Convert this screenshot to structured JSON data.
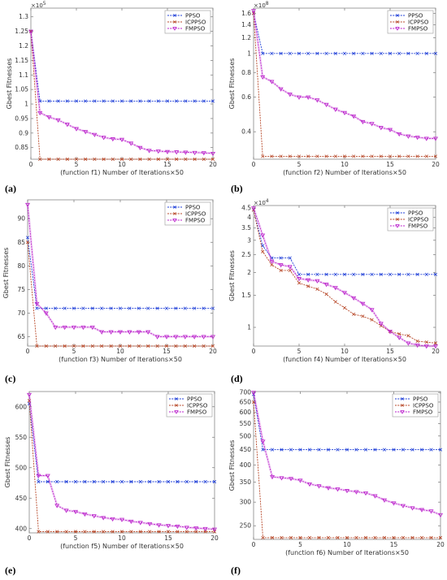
{
  "series_colors": {
    "PPSO": "#1f3fd8",
    "ICPPSO": "#b84a2b",
    "FMPSO": "#bb22cc"
  },
  "chart_data": [
    {
      "type": "line",
      "panel_label": "(a)",
      "xlabel": "(function f1)   Number of Iterations×50",
      "ylabel": "Gbest Fitnesses",
      "exponent": "×10",
      "exponent_power": "5",
      "xlim": [
        0,
        20
      ],
      "ylim": [
        0.81,
        1.33
      ],
      "xticks": [
        0,
        5,
        10,
        15,
        20
      ],
      "yticks": [
        0.85,
        0.9,
        0.95,
        1,
        1.05,
        1.1,
        1.15,
        1.2,
        1.25,
        1.3
      ],
      "ytick_labels": [
        "0.85",
        "0.9",
        "0.95",
        "1",
        "1.05",
        "1.1",
        "1.15",
        "1.2",
        "1.25",
        "1.3"
      ],
      "legend": [
        "PPSO",
        "ICPPSO",
        "FMPSO"
      ],
      "x": [
        0,
        1,
        2,
        3,
        4,
        5,
        6,
        7,
        8,
        9,
        10,
        11,
        12,
        13,
        14,
        15,
        16,
        17,
        18,
        19,
        20
      ],
      "series": [
        {
          "name": "PPSO",
          "values": [
            1.25,
            1.01,
            1.01,
            1.01,
            1.01,
            1.01,
            1.01,
            1.01,
            1.01,
            1.01,
            1.01,
            1.01,
            1.01,
            1.01,
            1.01,
            1.01,
            1.01,
            1.01,
            1.01,
            1.01,
            1.01
          ]
        },
        {
          "name": "ICPPSO",
          "values": [
            1.25,
            0.81,
            0.81,
            0.81,
            0.81,
            0.81,
            0.81,
            0.81,
            0.81,
            0.81,
            0.81,
            0.81,
            0.81,
            0.81,
            0.81,
            0.81,
            0.81,
            0.81,
            0.81,
            0.81,
            0.81
          ]
        },
        {
          "name": "FMPSO",
          "values": [
            1.25,
            0.97,
            0.955,
            0.945,
            0.93,
            0.915,
            0.905,
            0.895,
            0.885,
            0.88,
            0.878,
            0.865,
            0.85,
            0.84,
            0.838,
            0.836,
            0.835,
            0.834,
            0.833,
            0.832,
            0.83
          ]
        }
      ]
    },
    {
      "type": "line",
      "panel_label": "(b)",
      "xlabel": "(function f2)   Number of Iterations×50",
      "ylabel": "Gbest Fitnesses",
      "exponent": "×10",
      "exponent_power": "8",
      "xlim": [
        0,
        20
      ],
      "ylim": [
        0.29,
        1.7
      ],
      "yscale": "log",
      "xticks": [
        0,
        5,
        10,
        15,
        20
      ],
      "yticks": [
        0.4,
        0.6,
        0.8,
        1,
        1.2,
        1.4,
        1.6
      ],
      "ytick_labels": [
        "0.4",
        "0.6",
        "0.8",
        "1",
        "1.2",
        "1.4",
        "1.6"
      ],
      "legend": [
        "PPSO",
        "ICPPSO",
        "FMPSO"
      ],
      "x": [
        0,
        1,
        2,
        3,
        4,
        5,
        6,
        7,
        8,
        9,
        10,
        11,
        12,
        13,
        14,
        15,
        16,
        17,
        18,
        19,
        20
      ],
      "series": [
        {
          "name": "PPSO",
          "values": [
            1.6,
            1.0,
            1.0,
            1.0,
            1.0,
            1.0,
            1.0,
            1.0,
            1.0,
            1.0,
            1.0,
            1.0,
            1.0,
            1.0,
            1.0,
            1.0,
            1.0,
            1.0,
            1.0,
            1.0,
            1.0
          ]
        },
        {
          "name": "ICPPSO",
          "values": [
            1.6,
            0.3,
            0.3,
            0.3,
            0.3,
            0.3,
            0.3,
            0.3,
            0.3,
            0.3,
            0.3,
            0.3,
            0.3,
            0.3,
            0.3,
            0.3,
            0.3,
            0.3,
            0.3,
            0.3,
            0.3
          ]
        },
        {
          "name": "FMPSO",
          "values": [
            1.65,
            0.76,
            0.72,
            0.66,
            0.62,
            0.6,
            0.6,
            0.58,
            0.55,
            0.52,
            0.5,
            0.48,
            0.45,
            0.44,
            0.42,
            0.41,
            0.39,
            0.38,
            0.375,
            0.37,
            0.37
          ]
        }
      ]
    },
    {
      "type": "line",
      "panel_label": "(c)",
      "xlabel": "(function f3)   Number of Iterations×50",
      "ylabel": "Gbest Fitnesses",
      "xlim": [
        0,
        20
      ],
      "ylim": [
        63,
        94
      ],
      "xticks": [
        0,
        5,
        10,
        15,
        20
      ],
      "yticks": [
        65,
        70,
        75,
        80,
        85,
        90
      ],
      "ytick_labels": [
        "65",
        "70",
        "75",
        "80",
        "85",
        "90"
      ],
      "legend": [
        "PPSO",
        "ICPPSO",
        "FMPSO"
      ],
      "x": [
        0,
        1,
        2,
        3,
        4,
        5,
        6,
        7,
        8,
        9,
        10,
        11,
        12,
        13,
        14,
        15,
        16,
        17,
        18,
        19,
        20
      ],
      "series": [
        {
          "name": "PPSO",
          "values": [
            86,
            71,
            71,
            71,
            71,
            71,
            71,
            71,
            71,
            71,
            71,
            71,
            71,
            71,
            71,
            71,
            71,
            71,
            71,
            71,
            71
          ]
        },
        {
          "name": "ICPPSO",
          "values": [
            85,
            63,
            63,
            63,
            63,
            63,
            63,
            63,
            63,
            63,
            63,
            63,
            63,
            63,
            63,
            63,
            63,
            63,
            63,
            63,
            63
          ]
        },
        {
          "name": "FMPSO",
          "values": [
            93,
            72,
            70,
            67,
            67,
            67,
            67,
            67,
            66,
            66,
            66,
            66,
            66,
            66,
            65,
            65,
            65,
            65,
            65,
            65,
            65
          ]
        }
      ]
    },
    {
      "type": "line",
      "panel_label": "(d)",
      "xlabel": "(function f4)   Number of Iterations×50",
      "ylabel": "Gbest Fitnesses",
      "exponent": "×10",
      "exponent_power": "4",
      "xlim": [
        0,
        20
      ],
      "ylim": [
        0.79,
        4.65
      ],
      "yscale": "log",
      "xticks": [
        0,
        5,
        10,
        15,
        20
      ],
      "yticks": [
        1,
        1.5,
        2,
        2.5,
        3,
        3.5,
        4,
        4.5
      ],
      "ytick_labels": [
        "1",
        "1.5",
        "2",
        "2.5",
        "3",
        "3.5",
        "4",
        "4.5"
      ],
      "legend": [
        "PPSO",
        "ICPPSO",
        "FMPSO"
      ],
      "x": [
        0,
        1,
        2,
        3,
        4,
        5,
        6,
        7,
        8,
        9,
        10,
        11,
        12,
        13,
        14,
        15,
        16,
        17,
        18,
        19,
        20
      ],
      "series": [
        {
          "name": "PPSO",
          "values": [
            4.4,
            2.8,
            2.4,
            2.4,
            2.4,
            1.95,
            1.95,
            1.95,
            1.95,
            1.95,
            1.95,
            1.95,
            1.95,
            1.95,
            1.95,
            1.95,
            1.95,
            1.95,
            1.95,
            1.95,
            1.95
          ]
        },
        {
          "name": "ICPPSO",
          "values": [
            4.4,
            2.6,
            2.2,
            2.05,
            2.05,
            1.75,
            1.68,
            1.62,
            1.52,
            1.38,
            1.28,
            1.18,
            1.15,
            1.1,
            1.02,
            0.95,
            0.92,
            0.9,
            0.84,
            0.83,
            0.82
          ]
        },
        {
          "name": "FMPSO",
          "values": [
            4.5,
            3.2,
            2.3,
            2.2,
            2.15,
            1.85,
            1.82,
            1.8,
            1.72,
            1.65,
            1.55,
            1.45,
            1.35,
            1.25,
            1.05,
            0.95,
            0.88,
            0.82,
            0.8,
            0.79,
            0.79
          ]
        }
      ]
    },
    {
      "type": "line",
      "panel_label": "(e)",
      "xlabel": "(function f5)   Number of Iterations×50",
      "ylabel": "Gbest Fitnesses",
      "xlim": [
        0,
        20
      ],
      "ylim": [
        393,
        625
      ],
      "xticks": [
        0,
        5,
        10,
        15,
        20
      ],
      "yticks": [
        400,
        450,
        500,
        550,
        600
      ],
      "ytick_labels": [
        "400",
        "450",
        "500",
        "550",
        "600"
      ],
      "legend": [
        "PPSO",
        "ICPPSO",
        "FMPSO"
      ],
      "x": [
        0,
        1,
        2,
        3,
        4,
        5,
        6,
        7,
        8,
        9,
        10,
        11,
        12,
        13,
        14,
        15,
        16,
        17,
        18,
        19,
        20
      ],
      "series": [
        {
          "name": "PPSO",
          "values": [
            605,
            477,
            477,
            477,
            477,
            477,
            477,
            477,
            477,
            477,
            477,
            477,
            477,
            477,
            477,
            477,
            477,
            477,
            477,
            477,
            477
          ]
        },
        {
          "name": "ICPPSO",
          "values": [
            610,
            395,
            395,
            395,
            395,
            395,
            395,
            395,
            395,
            395,
            395,
            395,
            395,
            395,
            395,
            395,
            395,
            395,
            395,
            395,
            395
          ]
        },
        {
          "name": "FMPSO",
          "values": [
            620,
            487,
            487,
            438,
            430,
            428,
            424,
            421,
            418,
            416,
            415,
            412,
            410,
            408,
            406,
            405,
            404,
            402,
            401,
            400,
            399
          ]
        }
      ]
    },
    {
      "type": "line",
      "panel_label": "(f)",
      "xlabel": "(function f6)   Number of Iterations×50",
      "ylabel": "Gbest Fitnesses",
      "xlim": [
        0,
        20
      ],
      "ylim": [
        225,
        705
      ],
      "yscale": "log",
      "xticks": [
        0,
        5,
        10,
        15,
        20
      ],
      "yticks": [
        250,
        300,
        350,
        400,
        450,
        500,
        550,
        600,
        650,
        700
      ],
      "ytick_labels": [
        "250",
        "300",
        "350",
        "400",
        "450",
        "500",
        "550",
        "600",
        "650",
        "700"
      ],
      "legend": [
        "PPSO",
        "ICPPSO",
        "FMPSO"
      ],
      "x": [
        0,
        1,
        2,
        3,
        4,
        5,
        6,
        7,
        8,
        9,
        10,
        11,
        12,
        13,
        14,
        15,
        16,
        17,
        18,
        19,
        20
      ],
      "series": [
        {
          "name": "PPSO",
          "values": [
            690,
            450,
            450,
            450,
            450,
            450,
            450,
            450,
            450,
            450,
            450,
            450,
            450,
            450,
            450,
            450,
            450,
            450,
            450,
            450,
            450
          ]
        },
        {
          "name": "ICPPSO",
          "values": [
            650,
            228,
            228,
            228,
            228,
            228,
            228,
            228,
            228,
            228,
            228,
            228,
            228,
            228,
            228,
            228,
            228,
            228,
            228,
            228,
            228
          ]
        },
        {
          "name": "FMPSO",
          "values": [
            700,
            480,
            365,
            362,
            360,
            355,
            345,
            340,
            335,
            332,
            328,
            325,
            322,
            315,
            305,
            298,
            292,
            287,
            283,
            280,
            272
          ]
        }
      ]
    }
  ]
}
